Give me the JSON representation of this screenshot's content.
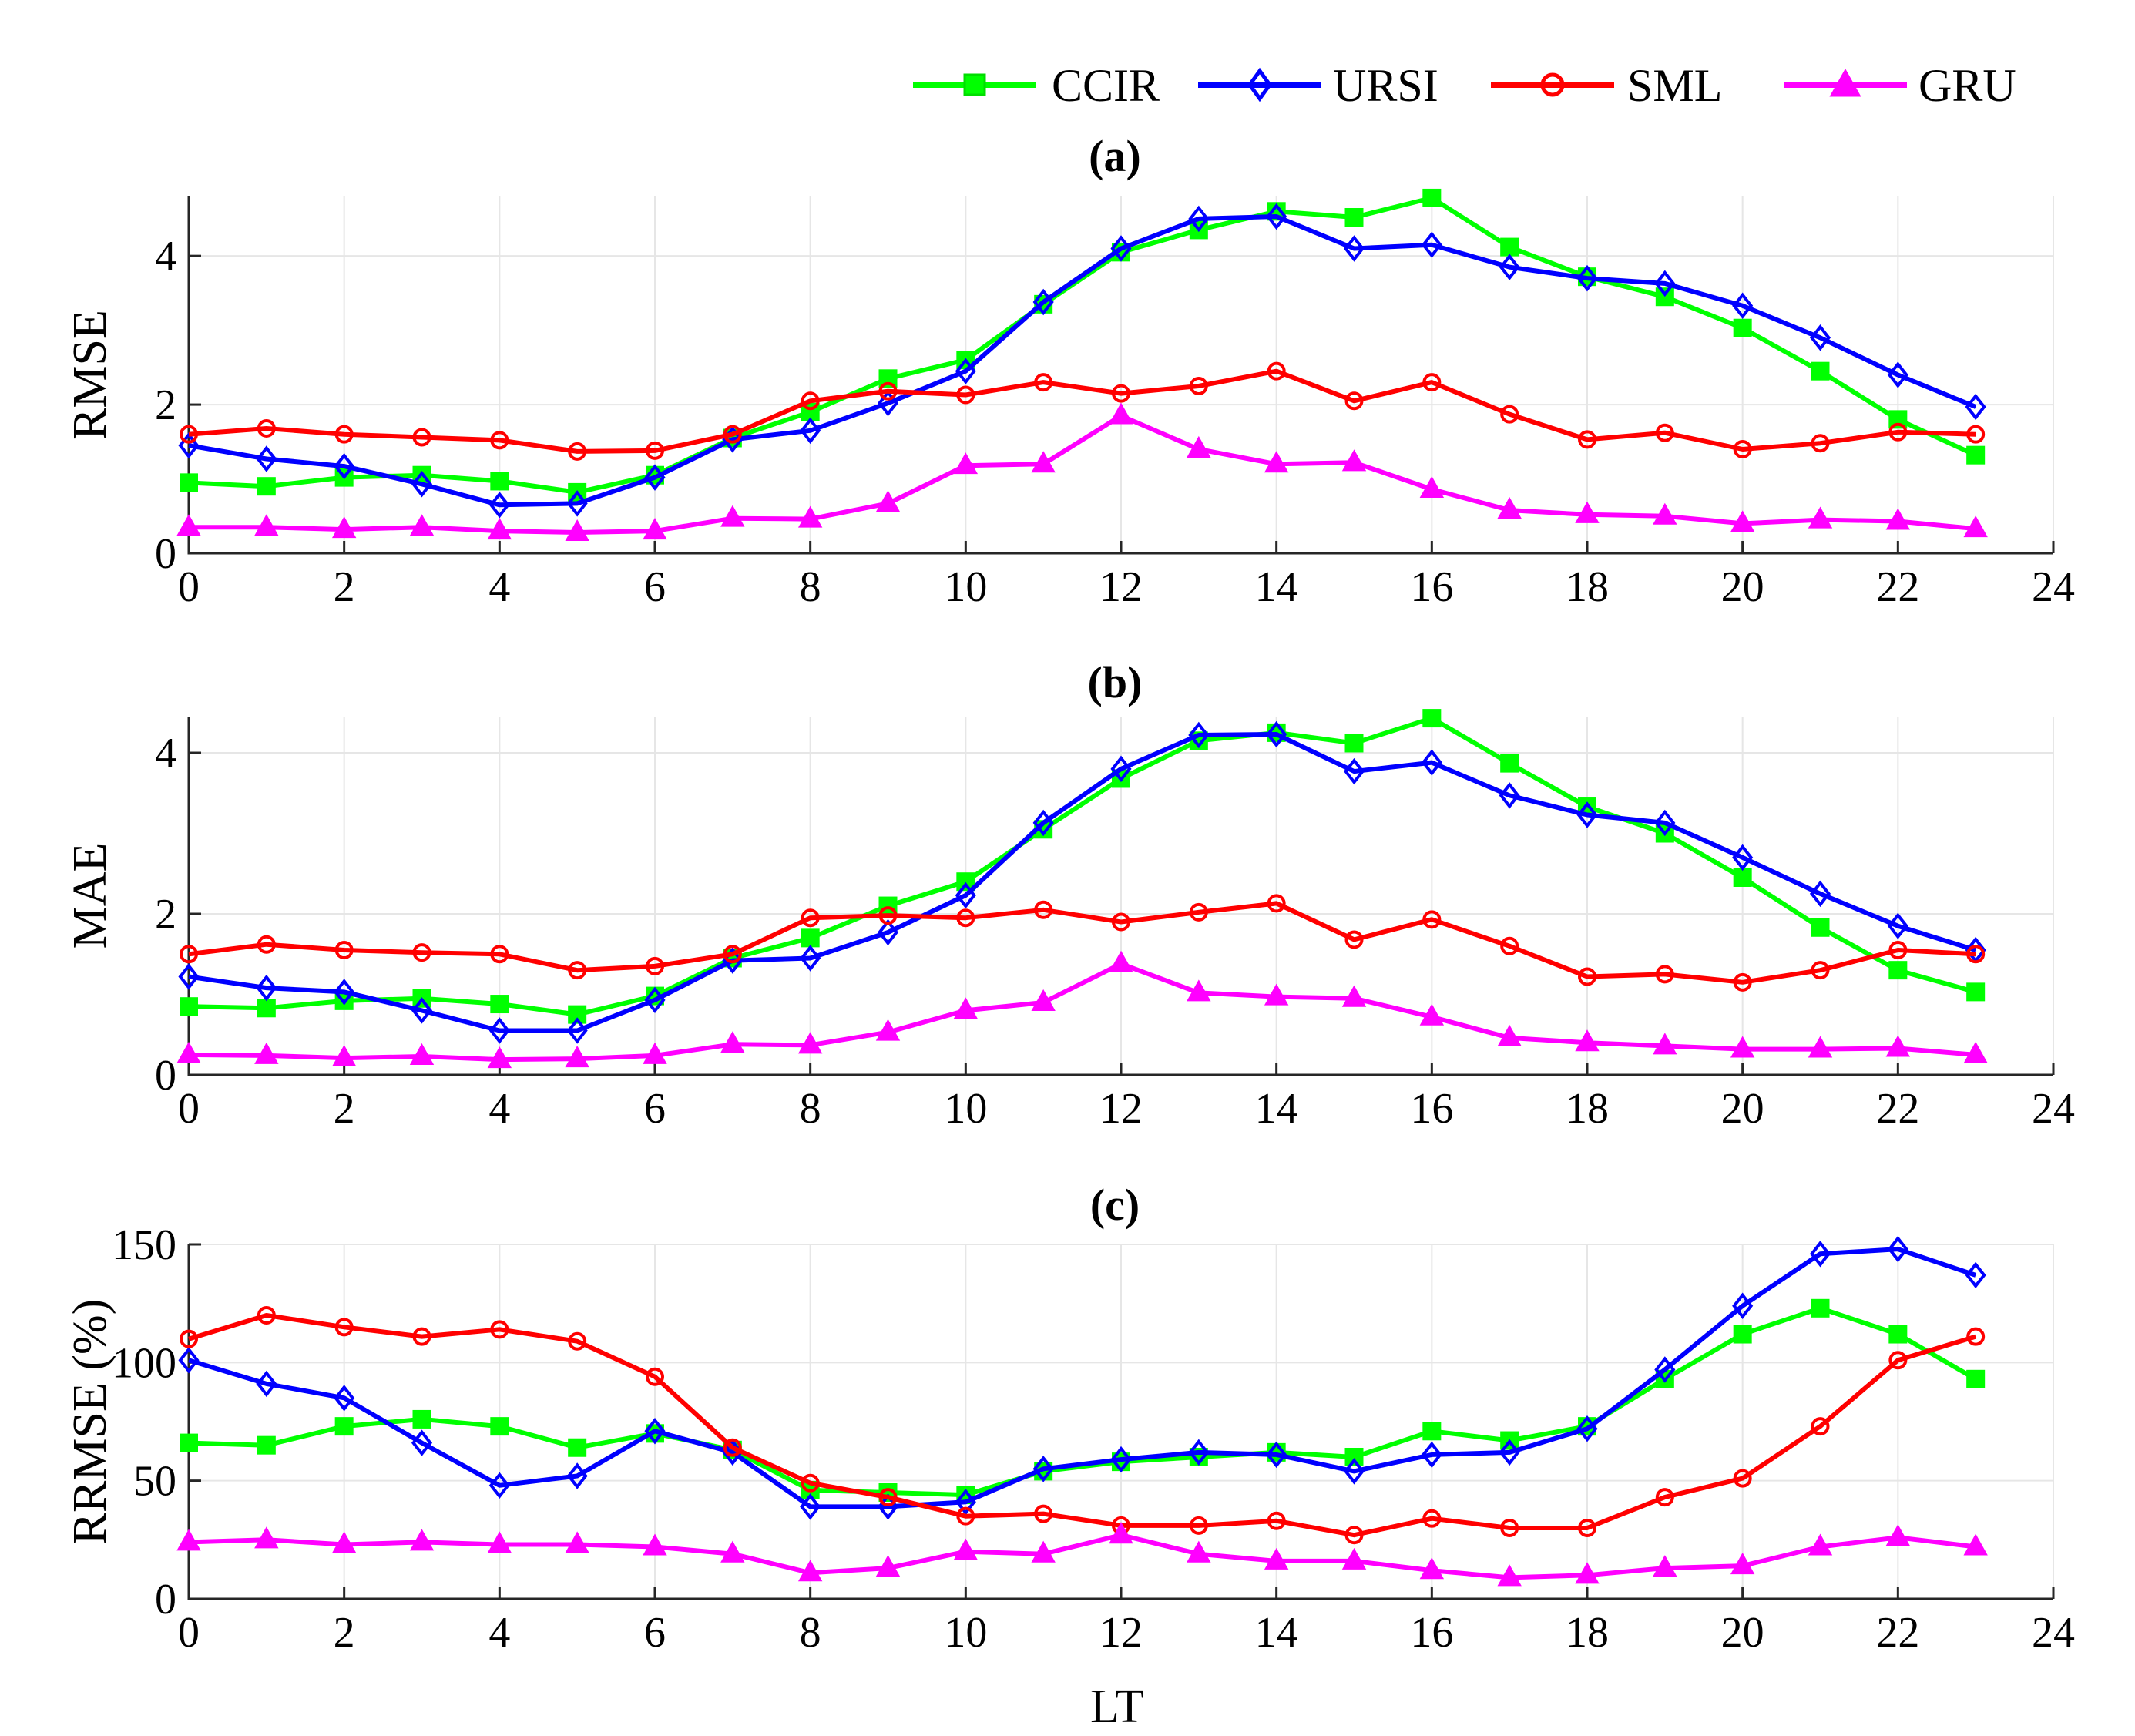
{
  "legend": [
    {
      "name": "CCIR",
      "color": "#00ff00",
      "marker": "square"
    },
    {
      "name": "URSI",
      "color": "#0000ff",
      "marker": "diamond"
    },
    {
      "name": "SML",
      "color": "#ff0000",
      "marker": "circle"
    },
    {
      "name": "GRU",
      "color": "#ff00ff",
      "marker": "triangle"
    }
  ],
  "xlabel": "LT",
  "chart_data": [
    {
      "type": "line",
      "title": "(a)",
      "ylabel": "RMSE",
      "xlim": [
        0,
        24
      ],
      "ylim": [
        0,
        4.8
      ],
      "xticks": [
        "0",
        "2",
        "4",
        "6",
        "8",
        "10",
        "12",
        "14",
        "16",
        "18",
        "20",
        "22",
        "24"
      ],
      "yticks": [
        0,
        2,
        4
      ],
      "ytick_labels": [
        "0",
        "2",
        "4"
      ],
      "grid": true,
      "x": [
        0,
        1,
        2,
        3,
        4,
        5,
        6,
        7,
        8,
        9,
        10,
        11,
        12,
        13,
        14,
        15,
        16,
        17,
        18,
        19,
        20,
        21,
        22,
        23
      ],
      "series": [
        {
          "name": "CCIR",
          "values": [
            0.95,
            0.9,
            1.02,
            1.05,
            0.97,
            0.82,
            1.05,
            1.55,
            1.9,
            2.35,
            2.6,
            3.35,
            4.05,
            4.35,
            4.6,
            4.52,
            4.78,
            4.12,
            3.72,
            3.45,
            3.03,
            2.45,
            1.8,
            1.32
          ]
        },
        {
          "name": "URSI",
          "values": [
            1.45,
            1.27,
            1.17,
            0.93,
            0.65,
            0.67,
            1.02,
            1.53,
            1.65,
            2.02,
            2.45,
            3.38,
            4.1,
            4.5,
            4.53,
            4.1,
            4.15,
            3.85,
            3.7,
            3.63,
            3.33,
            2.9,
            2.4,
            1.97
          ]
        },
        {
          "name": "SML",
          "values": [
            1.6,
            1.68,
            1.6,
            1.56,
            1.52,
            1.37,
            1.38,
            1.6,
            2.05,
            2.18,
            2.13,
            2.3,
            2.15,
            2.25,
            2.45,
            2.05,
            2.3,
            1.87,
            1.53,
            1.62,
            1.4,
            1.48,
            1.63,
            1.6
          ]
        },
        {
          "name": "GRU",
          "values": [
            0.35,
            0.35,
            0.32,
            0.35,
            0.3,
            0.28,
            0.3,
            0.47,
            0.46,
            0.67,
            1.18,
            1.2,
            1.85,
            1.4,
            1.2,
            1.22,
            0.86,
            0.58,
            0.52,
            0.5,
            0.4,
            0.45,
            0.43,
            0.33
          ]
        }
      ]
    },
    {
      "type": "line",
      "title": "(b)",
      "ylabel": "MAE",
      "xlim": [
        0,
        24
      ],
      "ylim": [
        0,
        4.45
      ],
      "xticks": [
        "0",
        "2",
        "4",
        "6",
        "8",
        "10",
        "12",
        "14",
        "16",
        "18",
        "20",
        "22",
        "24"
      ],
      "yticks": [
        0,
        2,
        4
      ],
      "ytick_labels": [
        "0",
        "2",
        "4"
      ],
      "grid": true,
      "x": [
        0,
        1,
        2,
        3,
        4,
        5,
        6,
        7,
        8,
        9,
        10,
        11,
        12,
        13,
        14,
        15,
        16,
        17,
        18,
        19,
        20,
        21,
        22,
        23
      ],
      "series": [
        {
          "name": "CCIR",
          "values": [
            0.85,
            0.83,
            0.92,
            0.95,
            0.88,
            0.75,
            0.98,
            1.45,
            1.7,
            2.1,
            2.4,
            3.05,
            3.68,
            4.15,
            4.25,
            4.12,
            4.43,
            3.87,
            3.33,
            3.0,
            2.45,
            1.83,
            1.3,
            1.03
          ]
        },
        {
          "name": "URSI",
          "values": [
            1.22,
            1.08,
            1.03,
            0.8,
            0.55,
            0.55,
            0.93,
            1.42,
            1.45,
            1.77,
            2.23,
            3.13,
            3.8,
            4.22,
            4.23,
            3.77,
            3.88,
            3.47,
            3.23,
            3.13,
            2.7,
            2.25,
            1.85,
            1.55
          ]
        },
        {
          "name": "SML",
          "values": [
            1.5,
            1.62,
            1.55,
            1.52,
            1.5,
            1.3,
            1.35,
            1.5,
            1.95,
            1.98,
            1.95,
            2.05,
            1.9,
            2.02,
            2.13,
            1.68,
            1.93,
            1.6,
            1.22,
            1.25,
            1.15,
            1.3,
            1.55,
            1.5
          ]
        },
        {
          "name": "GRU",
          "values": [
            0.25,
            0.24,
            0.21,
            0.23,
            0.19,
            0.2,
            0.24,
            0.38,
            0.37,
            0.53,
            0.8,
            0.9,
            1.38,
            1.02,
            0.97,
            0.95,
            0.72,
            0.46,
            0.4,
            0.36,
            0.32,
            0.32,
            0.33,
            0.25
          ]
        }
      ]
    },
    {
      "type": "line",
      "title": "(c)",
      "ylabel": "RRMSE (%)",
      "xlim": [
        0,
        24
      ],
      "ylim": [
        0,
        150
      ],
      "xticks": [
        "0",
        "2",
        "4",
        "6",
        "8",
        "10",
        "12",
        "14",
        "16",
        "18",
        "20",
        "22",
        "24"
      ],
      "yticks": [
        0,
        50,
        100,
        150
      ],
      "ytick_labels": [
        "0",
        "50",
        "100",
        "150"
      ],
      "grid": true,
      "x": [
        0,
        1,
        2,
        3,
        4,
        5,
        6,
        7,
        8,
        9,
        10,
        11,
        12,
        13,
        14,
        15,
        16,
        17,
        18,
        19,
        20,
        21,
        22,
        23
      ],
      "series": [
        {
          "name": "CCIR",
          "values": [
            66,
            65,
            73,
            76,
            73,
            64,
            70,
            63,
            46,
            45,
            44,
            54,
            58,
            60,
            62,
            60,
            71,
            67,
            73,
            93,
            112,
            123,
            112,
            93
          ]
        },
        {
          "name": "URSI",
          "values": [
            101,
            91,
            85,
            66,
            48,
            52,
            71,
            62,
            39,
            39,
            41,
            55,
            59,
            62,
            61,
            54,
            61,
            62,
            72,
            97,
            124,
            146,
            148,
            137
          ]
        },
        {
          "name": "SML",
          "values": [
            110,
            120,
            115,
            111,
            114,
            109,
            94,
            64,
            49,
            43,
            35,
            36,
            31,
            31,
            33,
            27,
            34,
            30,
            30,
            43,
            51,
            73,
            101,
            111
          ]
        },
        {
          "name": "GRU",
          "values": [
            24,
            25,
            23,
            24,
            23,
            23,
            22,
            19,
            11,
            13,
            20,
            19,
            27,
            19,
            16,
            16,
            12,
            9,
            10,
            13,
            14,
            22,
            26,
            22
          ]
        }
      ]
    }
  ]
}
